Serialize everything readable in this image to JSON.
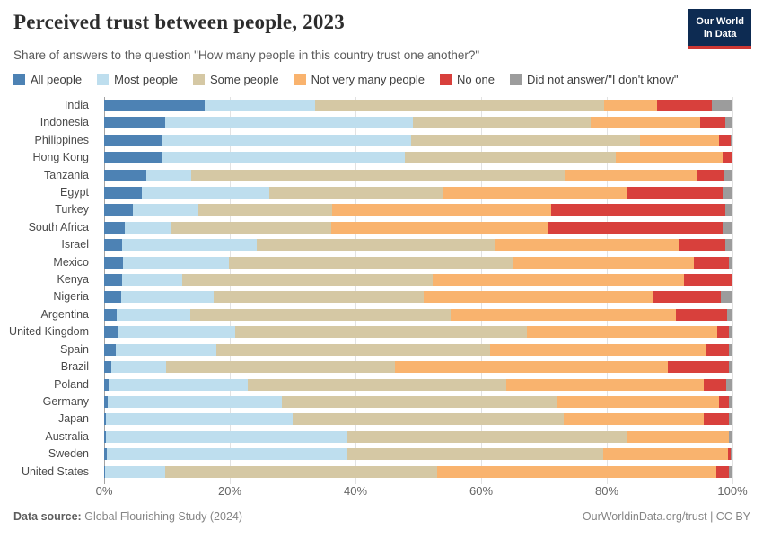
{
  "header": {
    "title": "Perceived trust between people, 2023",
    "subtitle": "Share of answers to the question \"How many people in this country trust one another?\"",
    "logo_line1": "Our World",
    "logo_line2": "in Data",
    "logo_bg_color": "#0d2b52",
    "logo_accent_color": "#cc3733"
  },
  "chart_data": {
    "type": "bar",
    "stacked": true,
    "orientation": "horizontal",
    "unit": "%",
    "grid": true,
    "legend_position": "top",
    "x_axis": {
      "range": [
        0,
        100
      ],
      "tick_step": 20,
      "ticks": [
        "0%",
        "20%",
        "40%",
        "60%",
        "80%",
        "100%"
      ]
    },
    "categories": [
      "India",
      "Indonesia",
      "Philippines",
      "Hong Kong",
      "Tanzania",
      "Egypt",
      "Turkey",
      "South Africa",
      "Israel",
      "Mexico",
      "Kenya",
      "Nigeria",
      "Argentina",
      "United Kingdom",
      "Spain",
      "Brazil",
      "Poland",
      "Germany",
      "Japan",
      "Australia",
      "Sweden",
      "United States"
    ],
    "series": [
      {
        "name": "All people",
        "color": "#4d82b4",
        "values": [
          16,
          9.7,
          9.3,
          9.2,
          6.7,
          6.0,
          4.5,
          3.3,
          2.9,
          3.0,
          2.9,
          2.7,
          2.0,
          2.1,
          1.9,
          1.2,
          0.7,
          0.5,
          0.3,
          0.3,
          0.4,
          0.2
        ]
      },
      {
        "name": "Most people",
        "color": "#bedeee",
        "values": [
          17.5,
          39.5,
          39.5,
          38.7,
          7.1,
          20.3,
          10.5,
          7.4,
          21.4,
          16.8,
          9.6,
          14.8,
          11.7,
          18.8,
          15.9,
          8.6,
          22.2,
          27.8,
          29.7,
          38.4,
          38.3,
          9.5
        ]
      },
      {
        "name": "Some people",
        "color": "#d5c8a4",
        "values": [
          46,
          28.2,
          36.5,
          33.6,
          59.5,
          27.7,
          21.3,
          25.5,
          37.8,
          45.2,
          39.8,
          33.4,
          41.4,
          46.4,
          43.7,
          36.5,
          41.1,
          43.7,
          43.2,
          44.6,
          40.8,
          43.3
        ]
      },
      {
        "name": "Not very many people",
        "color": "#f9b36e",
        "values": [
          8.5,
          17.5,
          12.5,
          16.9,
          21.0,
          29.2,
          34.8,
          34.5,
          29.4,
          28.9,
          40.0,
          36.6,
          35.9,
          30.3,
          34.4,
          43.4,
          31.5,
          25.9,
          22.2,
          16.1,
          19.8,
          44.5
        ]
      },
      {
        "name": "No one",
        "color": "#d8403c",
        "values": [
          8.7,
          4.0,
          1.9,
          1.6,
          4.4,
          15.2,
          27.8,
          27.8,
          7.3,
          5.5,
          7.5,
          10.6,
          8.2,
          1.9,
          3.5,
          9.8,
          3.5,
          1.6,
          4.0,
          0,
          0.4,
          2.0
        ]
      },
      {
        "name": "Did not answer/\"I don't know\"",
        "color": "#9c9c9c",
        "values": [
          3.3,
          1.1,
          0.3,
          0,
          1.3,
          1.6,
          1.1,
          1.5,
          1.2,
          0.6,
          0.2,
          1.9,
          0.8,
          0.5,
          0.6,
          0.5,
          1.0,
          0.5,
          0.6,
          0.6,
          0.3,
          0.5
        ]
      }
    ]
  },
  "footer": {
    "source_label": "Data source:",
    "source": "Global Flourishing Study (2024)",
    "credit": "OurWorldinData.org/trust | CC BY"
  }
}
